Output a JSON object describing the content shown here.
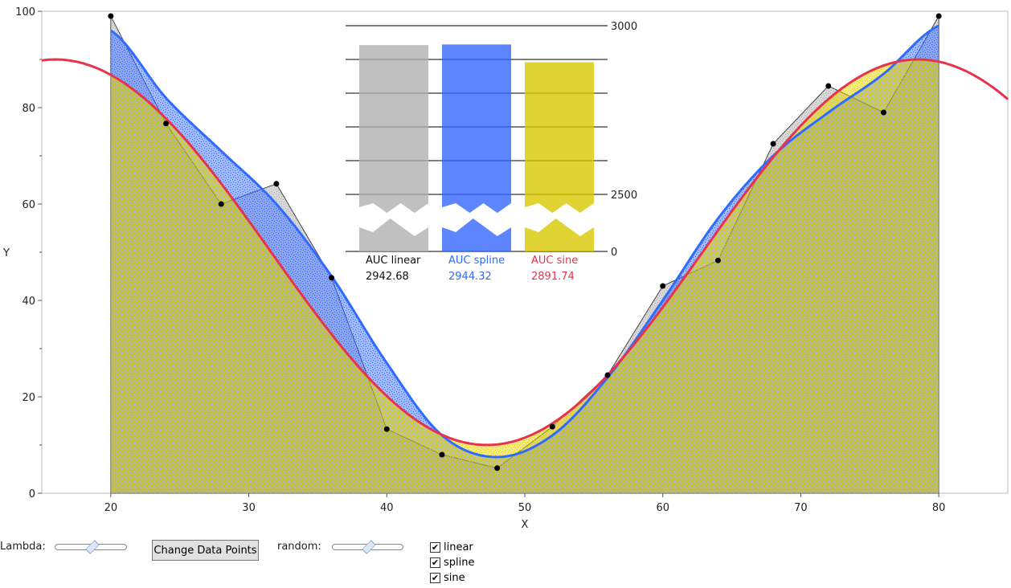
{
  "chart_data": [
    {
      "type": "area",
      "xlabel": "X",
      "ylabel": "Y",
      "xlim": [
        15,
        85
      ],
      "ylim": [
        0,
        100
      ],
      "xticks": [
        20,
        30,
        40,
        50,
        60,
        70,
        80
      ],
      "yticks": [
        0,
        20,
        40,
        60,
        80,
        100
      ],
      "x": [
        20,
        24,
        28,
        32,
        36,
        40,
        44,
        48,
        52,
        56,
        60,
        64,
        68,
        72,
        76,
        80
      ],
      "points": [
        99,
        76.7,
        60,
        64.2,
        44.7,
        13.3,
        8,
        5.2,
        13.8,
        24.5,
        43,
        48.3,
        72.5,
        84.5,
        79,
        99
      ],
      "series": [
        {
          "name": "linear",
          "color": "#888888",
          "fill": "#a8a8a8"
        },
        {
          "name": "spline",
          "color": "#2f6bff",
          "fill": "#3366ff",
          "values": [
            96,
            82,
            71,
            60,
            45,
            27,
            12,
            7.5,
            12,
            24,
            40,
            57,
            70,
            79,
            87,
            97
          ]
        },
        {
          "name": "sine",
          "color": "#e8334a",
          "fill": "#e0d000",
          "formula": "50+40*cos(2*pi*(x-16)/62.5)"
        }
      ]
    },
    {
      "type": "bar",
      "categories": [
        "AUC linear",
        "AUC spline",
        "AUC sine"
      ],
      "values": [
        2942.68,
        2944.32,
        2891.74
      ],
      "value_labels": [
        "2942.68",
        "2944.32",
        "2891.74"
      ],
      "label_colors": [
        "#111111",
        "#2f6bff",
        "#e8334a"
      ],
      "bar_colors": [
        "#b0b0b0",
        "#3366ff",
        "#d8c800"
      ],
      "yticks": [
        0,
        2500,
        3000
      ],
      "axis_break": [
        0,
        2500
      ],
      "ylim": [
        2500,
        3000
      ]
    }
  ],
  "controls": {
    "lambda_label": "Lambda:",
    "lambda_value": 0.5,
    "button_label": "Change Data Points",
    "random_label": "random:",
    "random_value": 0.5,
    "checkboxes": [
      {
        "label": "linear",
        "checked": true
      },
      {
        "label": "spline",
        "checked": true
      },
      {
        "label": "sine",
        "checked": true
      }
    ]
  }
}
